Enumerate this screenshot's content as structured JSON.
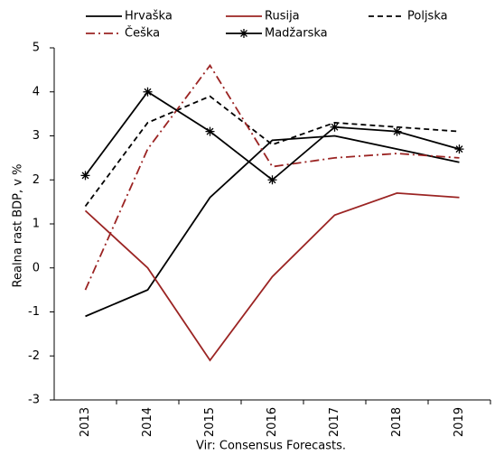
{
  "chart_data": {
    "type": "line",
    "y_label": "Realna rast BDP, v %",
    "source": "Vir: Consensus Forecasts.",
    "categories": [
      "2013",
      "2014",
      "2015",
      "2016",
      "2017",
      "2018",
      "2019"
    ],
    "series": [
      {
        "name": "Hrvaška",
        "color": "#000000",
        "dash": "solid",
        "values": [
          -1.1,
          -0.5,
          1.6,
          2.9,
          3.0,
          2.7,
          2.4
        ]
      },
      {
        "name": "Rusija",
        "color": "#9b2423",
        "dash": "solid",
        "values": [
          1.3,
          0.0,
          -2.1,
          -0.2,
          1.2,
          1.7,
          1.6
        ]
      },
      {
        "name": "Poljska",
        "color": "#000000",
        "dash": "dashed",
        "values": [
          1.4,
          3.3,
          3.9,
          2.8,
          3.3,
          3.2,
          3.1
        ]
      },
      {
        "name": "Češka",
        "color": "#9b2423",
        "dash": "dashdot",
        "values": [
          -0.5,
          2.7,
          4.6,
          2.3,
          2.5,
          2.6,
          2.5
        ]
      },
      {
        "name": "Madžarska",
        "color": "#000000",
        "dash": "solid",
        "marker": "asterisk",
        "values": [
          2.1,
          4.0,
          3.1,
          2.0,
          3.2,
          3.1,
          2.7
        ]
      }
    ],
    "ylim": [
      -3,
      5
    ],
    "yticks": [
      -3,
      -2,
      -1,
      0,
      1,
      2,
      3,
      4,
      5
    ],
    "grid": false,
    "legend": "top"
  }
}
